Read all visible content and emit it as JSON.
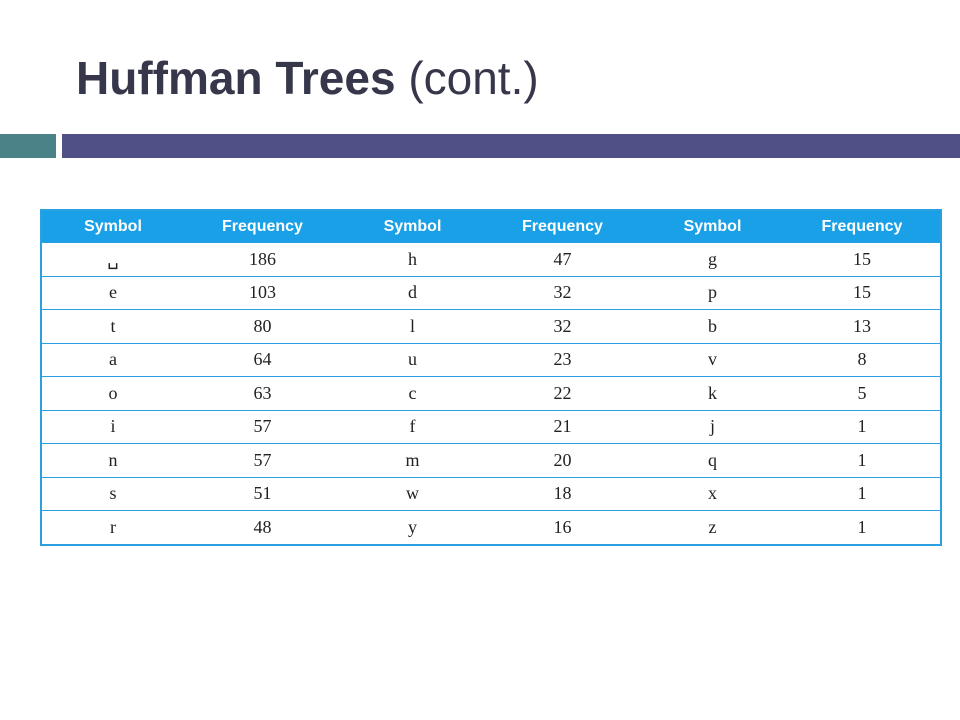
{
  "slide": {
    "title_main": "Huffman Trees",
    "title_sub": "(cont.)"
  },
  "colors": {
    "title": "#36374a",
    "accent_teal": "#4a8288",
    "accent_indigo": "#4f5085",
    "table_header": "#1aa0e6",
    "table_border": "#2c9fe0"
  },
  "table": {
    "headers": [
      "Symbol",
      "Frequency",
      "Symbol",
      "Frequency",
      "Symbol",
      "Frequency"
    ],
    "rows": [
      [
        "␣",
        "186",
        "h",
        "47",
        "g",
        "15"
      ],
      [
        "e",
        "103",
        "d",
        "32",
        "p",
        "15"
      ],
      [
        "t",
        "80",
        "l",
        "32",
        "b",
        "13"
      ],
      [
        "a",
        "64",
        "u",
        "23",
        "v",
        "8"
      ],
      [
        "o",
        "63",
        "c",
        "22",
        "k",
        "5"
      ],
      [
        "i",
        "57",
        "f",
        "21",
        "j",
        "1"
      ],
      [
        "n",
        "57",
        "m",
        "20",
        "q",
        "1"
      ],
      [
        "s",
        "51",
        "w",
        "18",
        "x",
        "1"
      ],
      [
        "r",
        "48",
        "y",
        "16",
        "z",
        "1"
      ]
    ]
  }
}
